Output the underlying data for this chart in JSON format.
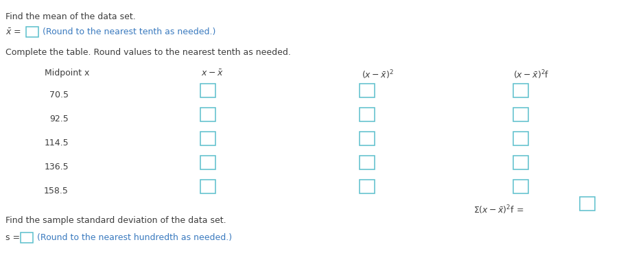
{
  "title_line1": "Find the mean of the data set.",
  "xbar_note": "(Round to the nearest tenth as needed.)",
  "complete_table_line": "Complete the table. Round values to the nearest tenth as needed.",
  "midpoints": [
    "70.5",
    "92.5",
    "114.5",
    "136.5",
    "158.5"
  ],
  "std_line": "Find the sample standard deviation of the data set.",
  "s_note": "(Round to the nearest hundredth as needed.)",
  "box_color": "#5abfcc",
  "text_color": "#3d3d3d",
  "blue_text_color": "#3a7abf",
  "font_size": 9.0,
  "fig_width": 9.24,
  "fig_height": 3.82,
  "dpi": 100
}
